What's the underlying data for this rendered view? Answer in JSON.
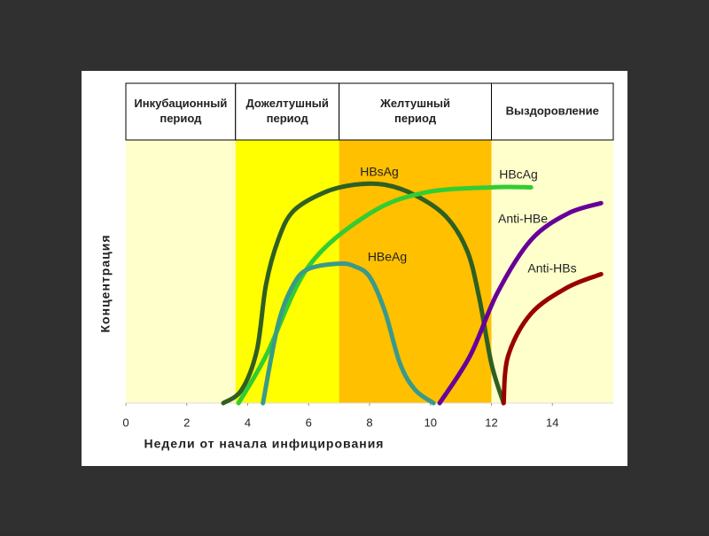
{
  "chart_data": {
    "type": "line",
    "xlabel": "Недели от начала инфицирования",
    "ylabel": "Концентрация",
    "xlim": [
      0,
      16
    ],
    "ylim": [
      0,
      100
    ],
    "xticks": [
      0,
      2,
      4,
      6,
      8,
      10,
      12,
      14
    ],
    "periods": [
      {
        "lines": [
          "Инкубационный",
          "период"
        ],
        "start": 0,
        "end": 3.6,
        "color": "#ffffcc"
      },
      {
        "lines": [
          "Дожелтушный",
          "период"
        ],
        "start": 3.6,
        "end": 7,
        "color": "#ffff00"
      },
      {
        "lines": [
          "Желтушный",
          "период"
        ],
        "start": 7,
        "end": 12,
        "color": "#ffc000"
      },
      {
        "lines": [
          "Выздоровление"
        ],
        "start": 12,
        "end": 16,
        "color": "#ffffcc"
      }
    ],
    "series": [
      {
        "name": "HBsAg",
        "color": "#2f5f22",
        "x": [
          3.2,
          3.8,
          4.3,
          4.6,
          5,
          5.5,
          6.5,
          7.5,
          8.5,
          9.5,
          10.5,
          11.2,
          11.6,
          12,
          12.4
        ],
        "values": [
          0,
          5,
          20,
          45,
          62,
          73,
          80,
          83,
          83,
          79,
          71,
          58,
          40,
          15,
          0
        ]
      },
      {
        "name": "HBcAg",
        "color": "#33cc33",
        "x": [
          3.7,
          4.6,
          6,
          8,
          9.8,
          12,
          13.3
        ],
        "values": [
          0,
          18,
          52,
          72,
          80,
          82,
          82
        ]
      },
      {
        "name": "HBeAg",
        "color": "#3a9a8a",
        "x": [
          4.5,
          5,
          5.5,
          6,
          7,
          7.5,
          8,
          8.5,
          9,
          9.5,
          10.1
        ],
        "values": [
          0,
          30,
          45,
          51,
          53,
          52,
          48,
          35,
          15,
          5,
          0
        ]
      },
      {
        "name": "Anti-HBe",
        "color": "#660099",
        "x": [
          10.3,
          11.3,
          12.2,
          13.3,
          14.5,
          15.6
        ],
        "values": [
          0,
          18,
          42,
          62,
          72,
          76
        ]
      },
      {
        "name": "Anti-HBs",
        "color": "#990000",
        "x": [
          12.4,
          12.55,
          13.3,
          14.5,
          15.6
        ],
        "values": [
          0,
          18,
          34,
          44,
          49
        ]
      }
    ]
  }
}
